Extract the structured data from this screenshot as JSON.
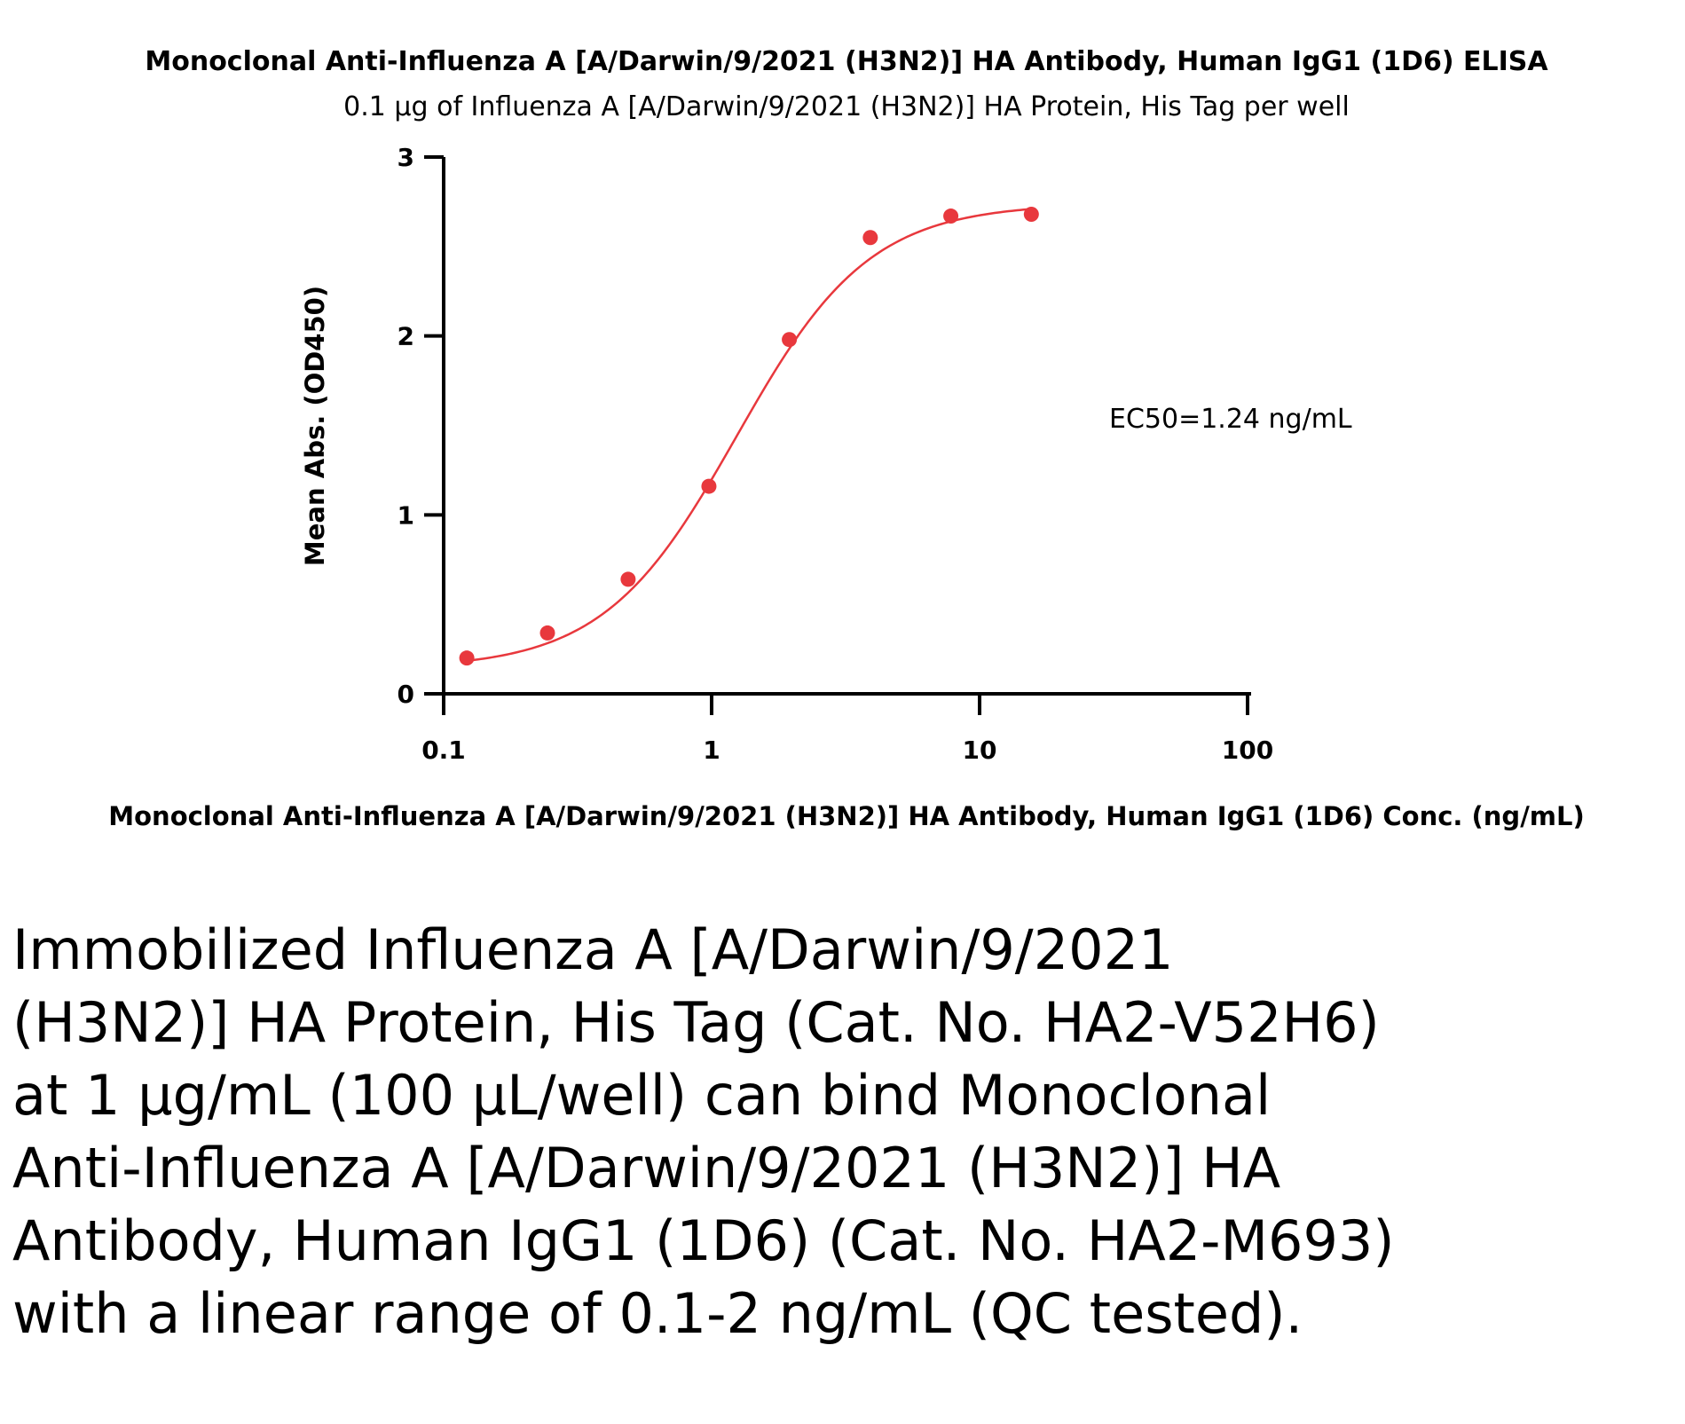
{
  "chart_data": {
    "type": "scatter",
    "title": "Monoclonal Anti-Influenza A [A/Darwin/9/2021 (H3N2)] HA Antibody, Human IgG1 (1D6) ELISA",
    "subtitle": "0.1 µg of Influenza A [A/Darwin/9/2021 (H3N2)] HA Protein, His Tag per well",
    "xlabel": "Monoclonal Anti-Influenza A [A/Darwin/9/2021 (H3N2)] HA Antibody, Human IgG1 (1D6) Conc. (ng/mL)",
    "ylabel": "Mean Abs. (OD450)",
    "x_scale": "log",
    "xlim": [
      0.1,
      100
    ],
    "ylim": [
      0,
      3
    ],
    "x_ticks": [
      0.1,
      1,
      10,
      100
    ],
    "x_tick_labels": [
      "0.1",
      "1",
      "10",
      "100"
    ],
    "y_ticks": [
      0,
      1,
      2,
      3
    ],
    "y_tick_labels": [
      "0",
      "1",
      "2",
      "3"
    ],
    "grid": false,
    "color": "#e8383d",
    "series": [
      {
        "points": [
          {
            "x": 0.122,
            "y": 0.2
          },
          {
            "x": 0.244,
            "y": 0.34
          },
          {
            "x": 0.488,
            "y": 0.64
          },
          {
            "x": 0.977,
            "y": 1.16
          },
          {
            "x": 1.95,
            "y": 1.98
          },
          {
            "x": 3.91,
            "y": 2.55
          },
          {
            "x": 7.81,
            "y": 2.67
          },
          {
            "x": 15.6,
            "y": 2.68
          }
        ],
        "fit": {
          "model": "4PL",
          "bottom": 0.14,
          "top": 2.74,
          "ec50": 1.24,
          "hill": 1.75
        }
      }
    ],
    "annotations": [
      "EC50=1.24 ng/mL"
    ]
  },
  "caption": "Immobilized Influenza A [A/Darwin/9/2021 (H3N2)] HA Protein, His Tag (Cat. No. HA2-V52H6) at 1 µg/mL (100 µL/well) can bind Monoclonal Anti-Influenza A [A/Darwin/9/2021 (H3N2)] HA Antibody, Human IgG1 (1D6) (Cat. No. HA2-M693) with a linear range of 0.1-2 ng/mL (QC tested)."
}
